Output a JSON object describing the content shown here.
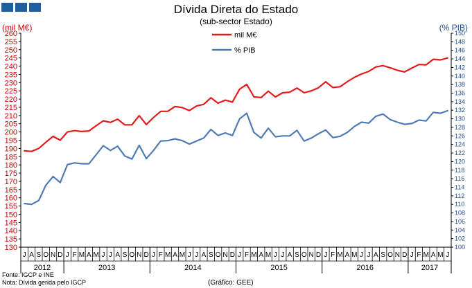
{
  "header": {
    "title": "Dívida Direta do Estado",
    "subtitle": "(sub-sector Estado)",
    "left_unit": "(mil M€)",
    "right_unit": "(% PIB)"
  },
  "footer": {
    "source": "Fonte: IGCP e INE",
    "note": "Nota: Dívida gerida pelo IGCP",
    "credit": "(Gráfico: GEE)"
  },
  "colors": {
    "red": "#e41a1c",
    "blue": "#4f7bb5",
    "left_axis": "#cc0000",
    "right_axis": "#1f4e8c"
  },
  "chart_data": {
    "type": "line",
    "title": "Dívida Direta do Estado",
    "subtitle": "(sub-sector Estado)",
    "legend_position": "top-center",
    "grid": false,
    "x": [
      "J",
      "A",
      "S",
      "O",
      "N",
      "D",
      "J",
      "F",
      "M",
      "A",
      "M",
      "J",
      "J",
      "A",
      "S",
      "O",
      "N",
      "D",
      "J",
      "F",
      "M",
      "A",
      "M",
      "J",
      "J",
      "A",
      "S",
      "O",
      "N",
      "D",
      "J",
      "F",
      "M",
      "A",
      "M",
      "J",
      "J",
      "A",
      "S",
      "O",
      "N",
      "D",
      "J",
      "F",
      "M",
      "A",
      "M",
      "J",
      "J",
      "A",
      "S",
      "O",
      "N",
      "D",
      "J",
      "F",
      "M",
      "A",
      "M",
      "J"
    ],
    "x_years": [
      {
        "label": "2012",
        "start": 0,
        "end": 5
      },
      {
        "label": "2013",
        "start": 6,
        "end": 17
      },
      {
        "label": "2014",
        "start": 18,
        "end": 29
      },
      {
        "label": "2015",
        "start": 30,
        "end": 41
      },
      {
        "label": "2016",
        "start": 42,
        "end": 53
      },
      {
        "label": "2017",
        "start": 54,
        "end": 59
      }
    ],
    "y_left": {
      "label": "(mil M€)",
      "range": [
        130,
        260
      ],
      "ticks": [
        130,
        135,
        140,
        145,
        150,
        155,
        160,
        165,
        170,
        175,
        180,
        185,
        190,
        195,
        200,
        205,
        210,
        215,
        220,
        225,
        230,
        235,
        240,
        245,
        250,
        255,
        260
      ]
    },
    "y_right": {
      "label": "(% PIB)",
      "range": [
        100,
        150
      ],
      "ticks": [
        100,
        102,
        104,
        106,
        108,
        110,
        112,
        114,
        116,
        118,
        120,
        122,
        124,
        126,
        128,
        130,
        132,
        134,
        136,
        138,
        140,
        142,
        144,
        146,
        148,
        150
      ]
    },
    "series": [
      {
        "name": "mil M€",
        "axis": "left",
        "color": "#e41a1c",
        "values": [
          188.5,
          188.2,
          190.0,
          193.8,
          197.3,
          195.0,
          200.0,
          200.8,
          200.3,
          200.6,
          203.8,
          206.8,
          205.8,
          207.8,
          204.3,
          204.4,
          209.9,
          204.5,
          208.8,
          212.5,
          212.6,
          215.5,
          214.8,
          213.0,
          215.8,
          216.8,
          220.8,
          217.5,
          219.3,
          218.2,
          226.0,
          228.9,
          221.3,
          220.9,
          224.8,
          221.3,
          223.8,
          224.2,
          226.7,
          223.8,
          225.0,
          226.9,
          230.5,
          227.0,
          227.5,
          230.5,
          233.2,
          235.2,
          236.8,
          239.5,
          240.3,
          239.0,
          237.5,
          236.5,
          238.8,
          241.0,
          240.8,
          244.2,
          243.8,
          245.0
        ]
      },
      {
        "name": "% PIB",
        "axis": "right",
        "color": "#4f7bb5",
        "values": [
          110.2,
          110.0,
          110.9,
          114.5,
          116.5,
          115.1,
          119.3,
          119.7,
          119.5,
          119.5,
          121.6,
          123.7,
          122.6,
          123.6,
          121.3,
          120.6,
          123.8,
          120.7,
          122.6,
          124.8,
          124.9,
          125.3,
          124.9,
          124.1,
          124.8,
          125.5,
          127.5,
          126.1,
          126.7,
          126.1,
          130.0,
          131.3,
          126.8,
          125.5,
          127.8,
          125.8,
          126.0,
          126.0,
          127.3,
          124.8,
          125.5,
          126.5,
          127.4,
          125.6,
          125.9,
          126.8,
          128.2,
          129.2,
          129.0,
          130.6,
          131.1,
          129.8,
          129.2,
          128.7,
          128.9,
          129.7,
          129.5,
          131.5,
          131.3,
          131.9
        ]
      }
    ]
  }
}
